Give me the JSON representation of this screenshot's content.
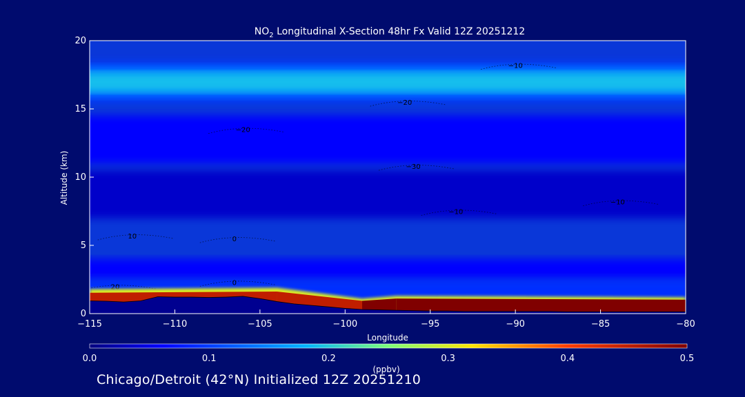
{
  "chart_data": {
    "type": "heatmap",
    "title_prefix": "NO",
    "title_sub": "2",
    "title_rest": " Longitudinal X-Section 48hr  Fx Valid 12Z 20251212",
    "xlabel": "Longitude",
    "ylabel": "Altitude (km)",
    "xlim": [
      -115,
      -80
    ],
    "ylim": [
      0,
      20
    ],
    "xticks": [
      -115,
      -110,
      -105,
      -100,
      -95,
      -90,
      -85,
      -80
    ],
    "xtick_labels": [
      "−115",
      "−110",
      "−105",
      "−100",
      "−95",
      "−90",
      "−85",
      "−80"
    ],
    "yticks": [
      0,
      5,
      10,
      15,
      20
    ],
    "ytick_labels": [
      "0",
      "5",
      "10",
      "15",
      "20"
    ],
    "colorbar": {
      "label": "(ppbv)",
      "range": [
        0.0,
        0.5
      ],
      "ticks": [
        0.0,
        0.1,
        0.2,
        0.3,
        0.4,
        0.5
      ],
      "tick_labels": [
        "0.0",
        "0.1",
        "0.2",
        "0.3",
        "0.4",
        "0.5"
      ]
    },
    "terrain_km": [
      [
        -115,
        1.7
      ],
      [
        -114,
        1.65
      ],
      [
        -113,
        1.55
      ],
      [
        -112,
        1.7
      ],
      [
        -111,
        2.25
      ],
      [
        -110,
        2.2
      ],
      [
        -109,
        2.2
      ],
      [
        -108,
        2.15
      ],
      [
        -107,
        2.2
      ],
      [
        -106,
        2.3
      ],
      [
        -105,
        2.0
      ],
      [
        -104,
        1.6
      ],
      [
        -103,
        1.3
      ],
      [
        -102,
        1.1
      ],
      [
        -101,
        0.9
      ],
      [
        -100,
        0.7
      ],
      [
        -99,
        0.55
      ],
      [
        -98,
        0.5
      ],
      [
        -97,
        0.45
      ],
      [
        -96,
        0.4
      ],
      [
        -95,
        0.35
      ],
      [
        -94,
        0.35
      ],
      [
        -93,
        0.3
      ],
      [
        -92,
        0.3
      ],
      [
        -91,
        0.3
      ],
      [
        -90,
        0.3
      ],
      [
        -89,
        0.3
      ],
      [
        -88,
        0.3
      ],
      [
        -87,
        0.25
      ],
      [
        -86,
        0.25
      ],
      [
        -85,
        0.25
      ],
      [
        -84,
        0.25
      ],
      [
        -83,
        0.25
      ],
      [
        -82,
        0.25
      ],
      [
        -81,
        0.25
      ],
      [
        -80,
        0.25
      ]
    ],
    "layers": [
      {
        "alt_km": [
          18.4,
          15.5
        ],
        "value": 0.1
      },
      {
        "alt_km": [
          18.0,
          16.0
        ],
        "value": 0.15
      },
      {
        "alt_km": [
          17.6,
          16.3
        ],
        "value": 0.19
      },
      {
        "alt_km": [
          14.5,
          11.0
        ],
        "value": 0.06
      },
      {
        "alt_km": [
          10.5,
          7.0
        ],
        "value": 0.035
      },
      {
        "alt_km": [
          4.0,
          2.5
        ],
        "value": 0.06
      },
      {
        "alt_km": [
          2.5,
          0.0
        ],
        "value": 0.09
      }
    ],
    "boundary_layer": [
      {
        "lon": -115,
        "top_km": 1.8,
        "value": 0.45
      },
      {
        "lon": -104,
        "top_km": 1.9,
        "value": 0.45
      },
      {
        "lon": -99,
        "top_km": 1.1,
        "value": 0.3
      },
      {
        "lon": -97,
        "top_km": 1.3,
        "value": 0.5
      },
      {
        "lon": -80,
        "top_km": 1.2,
        "value": 0.5
      }
    ],
    "temperature_contours": [
      {
        "label": "−10",
        "lon": -90,
        "alt_km": 18.2
      },
      {
        "label": "−20",
        "lon": -96.5,
        "alt_km": 15.5
      },
      {
        "label": "−20",
        "lon": -106,
        "alt_km": 13.5
      },
      {
        "label": "−30",
        "lon": -96,
        "alt_km": 10.8
      },
      {
        "label": "−10",
        "lon": -93.5,
        "alt_km": 7.5
      },
      {
        "label": "−10",
        "lon": -84,
        "alt_km": 8.2
      },
      {
        "label": "0",
        "lon": -106.5,
        "alt_km": 5.5
      },
      {
        "label": "10",
        "lon": -112.5,
        "alt_km": 5.7
      },
      {
        "label": "0",
        "lon": -106.5,
        "alt_km": 2.3
      },
      {
        "label": "20",
        "lon": -113.5,
        "alt_km": 2.0
      }
    ]
  },
  "footer": "Chicago/Detroit (42°N) Initialized 12Z 20251210"
}
